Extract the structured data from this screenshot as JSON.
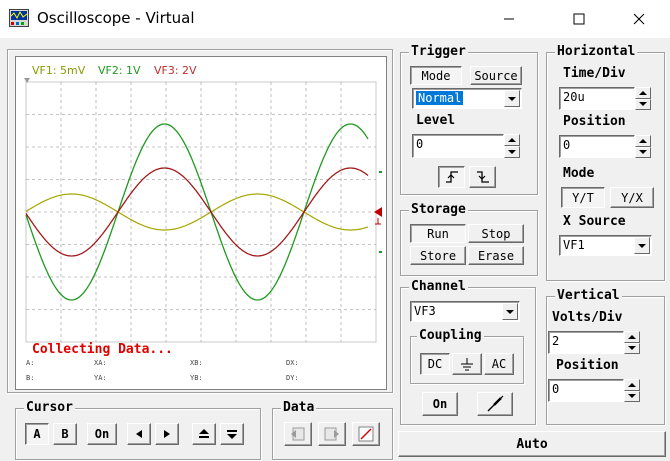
{
  "window": {
    "title": "Oscilloscope - Virtual",
    "controls": {
      "minimize": "—",
      "maximize": "☐",
      "close": "✕"
    }
  },
  "screen": {
    "legend": [
      {
        "label": "VF1: 5mV",
        "color": "#8a9a00"
      },
      {
        "label": "VF2: 1V",
        "color": "#1e9a1e"
      },
      {
        "label": "VF3: 2V",
        "color": "#c03030"
      }
    ],
    "status": "Collecting Data...",
    "cursor_readouts": {
      "A": "A:",
      "XA": "XA:",
      "XB": "XB:",
      "DX": "DX:",
      "B": "B:",
      "YA": "YA:",
      "YB": "YB:",
      "DY": "DY:"
    },
    "colors": {
      "grid": "#b0b0b0",
      "vf1": "#a6a600",
      "vf2": "#1e9a1e",
      "vf3": "#a01a1a",
      "trigger": "#c00000"
    }
  },
  "trigger": {
    "title": "Trigger",
    "mode_tab": "Mode",
    "source_tab": "Source",
    "mode_value": "Normal",
    "level_label": "Level",
    "level_value": "0",
    "rising_icon": "rising-edge-icon",
    "falling_icon": "falling-edge-icon"
  },
  "horizontal": {
    "title": "Horizontal",
    "time_div_label": "Time/Div",
    "time_div_value": "20u",
    "position_label": "Position",
    "position_value": "0",
    "mode_label": "Mode",
    "yt_button": "Y/T",
    "yx_button": "Y/X",
    "x_source_label": "X Source",
    "x_source_value": "VF1"
  },
  "storage": {
    "title": "Storage",
    "run": "Run",
    "stop": "Stop",
    "store": "Store",
    "erase": "Erase"
  },
  "channel": {
    "title": "Channel",
    "value": "VF3",
    "coupling_title": "Coupling",
    "dc": "DC",
    "gnd_icon": "ground-icon",
    "ac": "AC",
    "on": "On",
    "probe_icon": "probe-icon"
  },
  "vertical": {
    "title": "Vertical",
    "volts_div_label": "Volts/Div",
    "volts_div_value": "2",
    "position_label": "Position",
    "position_value": "0"
  },
  "auto_button": "Auto",
  "cursor": {
    "title": "Cursor",
    "a": "A",
    "b": "B",
    "on": "On",
    "left": "◀",
    "right": "▶",
    "up": "⏶",
    "down": "⏷"
  },
  "data_group": {
    "title": "Data"
  }
}
